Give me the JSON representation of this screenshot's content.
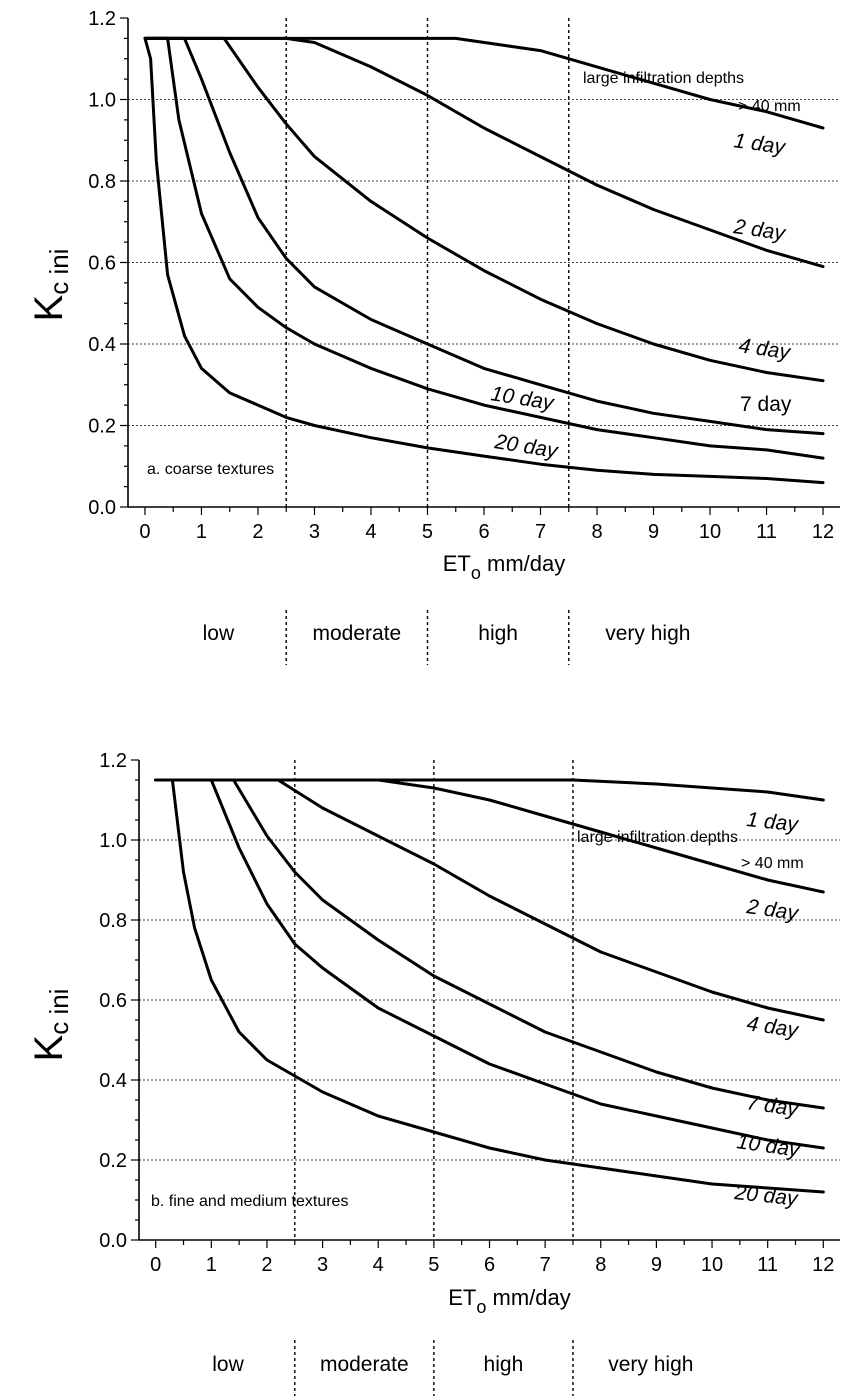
{
  "chart_data": [
    {
      "type": "line",
      "panel_label": "a.  coarse textures",
      "xlabel": "ET",
      "xlabel_sub": "o",
      "xlabel_unit": " mm/day",
      "ylabel": "K",
      "ylabel_sub": "c ini",
      "xlim": [
        -0.3,
        12.3
      ],
      "ylim": [
        0,
        1.2
      ],
      "x_ticks": [
        "0",
        "1",
        "2",
        "3",
        "4",
        "5",
        "6",
        "7",
        "8",
        "9",
        "10",
        "11",
        "12"
      ],
      "y_ticks": [
        "0.0",
        "0.2",
        "0.4",
        "0.6",
        "0.8",
        "1.0",
        "1.2"
      ],
      "grid": "horizontal dotted",
      "evaporative_demand": [
        "low",
        "moderate",
        "high",
        "very high"
      ],
      "class_boundaries": [
        2.5,
        5,
        7.5
      ],
      "infiltration_label": "large infiltration depths",
      "infiltration_sublabel": "> 40 mm",
      "series": [
        {
          "label": "1 day",
          "x": [
            0,
            3,
            5.5,
            7,
            8,
            9,
            10,
            11,
            12
          ],
          "y": [
            1.15,
            1.15,
            1.15,
            1.12,
            1.08,
            1.04,
            1.0,
            0.97,
            0.93
          ]
        },
        {
          "label": "2 day",
          "x": [
            0,
            2.5,
            3,
            4,
            5,
            6,
            7,
            8,
            9,
            10,
            11,
            12
          ],
          "y": [
            1.15,
            1.15,
            1.14,
            1.08,
            1.01,
            0.93,
            0.86,
            0.79,
            0.73,
            0.68,
            0.63,
            0.59
          ]
        },
        {
          "label": "4 day",
          "x": [
            0,
            1.4,
            2,
            2.5,
            3,
            4,
            5,
            6,
            7,
            8,
            9,
            10,
            11,
            12
          ],
          "y": [
            1.15,
            1.15,
            1.03,
            0.94,
            0.86,
            0.75,
            0.66,
            0.58,
            0.51,
            0.45,
            0.4,
            0.36,
            0.33,
            0.31
          ]
        },
        {
          "label": "7 day",
          "x": [
            0,
            0.7,
            1,
            1.5,
            2,
            2.5,
            3,
            4,
            5,
            6,
            7,
            8,
            9,
            10,
            11,
            12
          ],
          "y": [
            1.15,
            1.15,
            1.05,
            0.87,
            0.71,
            0.61,
            0.54,
            0.46,
            0.4,
            0.34,
            0.3,
            0.26,
            0.23,
            0.21,
            0.19,
            0.18
          ]
        },
        {
          "label": "10 day",
          "x": [
            0,
            0.4,
            0.6,
            1,
            1.5,
            2,
            2.5,
            3,
            4,
            5,
            6,
            7,
            8,
            9,
            10,
            11,
            12
          ],
          "y": [
            1.15,
            1.15,
            0.95,
            0.72,
            0.56,
            0.49,
            0.44,
            0.4,
            0.34,
            0.29,
            0.25,
            0.22,
            0.19,
            0.17,
            0.15,
            0.14,
            0.12
          ]
        },
        {
          "label": "20 day",
          "x": [
            0,
            0.1,
            0.2,
            0.4,
            0.7,
            1,
            1.5,
            2,
            2.5,
            3,
            4,
            5,
            6,
            7,
            8,
            9,
            10,
            11,
            12
          ],
          "y": [
            1.15,
            1.1,
            0.85,
            0.57,
            0.42,
            0.34,
            0.28,
            0.25,
            0.22,
            0.2,
            0.17,
            0.145,
            0.125,
            0.105,
            0.09,
            0.08,
            0.075,
            0.07,
            0.06
          ]
        }
      ]
    },
    {
      "type": "line",
      "panel_label": "b.  fine and medium textures",
      "xlabel": "ET",
      "xlabel_sub": "o",
      "xlabel_unit": " mm/day",
      "ylabel": "K",
      "ylabel_sub": "c ini",
      "xlim": [
        -0.3,
        12.3
      ],
      "ylim": [
        0,
        1.2
      ],
      "x_ticks": [
        "0",
        "1",
        "2",
        "3",
        "4",
        "5",
        "6",
        "7",
        "8",
        "9",
        "10",
        "11",
        "12"
      ],
      "y_ticks": [
        "0.0",
        "0.2",
        "0.4",
        "0.6",
        "0.8",
        "1.0",
        "1.2"
      ],
      "grid": "horizontal dotted",
      "evaporative_demand": [
        "low",
        "moderate",
        "high",
        "very high"
      ],
      "class_boundaries": [
        2.5,
        5,
        7.5
      ],
      "infiltration_label": "large infiltration depths",
      "infiltration_sublabel": "> 40 mm",
      "series": [
        {
          "label": "1 day",
          "x": [
            0,
            7.5,
            9,
            10,
            11,
            12
          ],
          "y": [
            1.15,
            1.15,
            1.14,
            1.13,
            1.12,
            1.1
          ]
        },
        {
          "label": "2 day",
          "x": [
            0,
            4,
            5,
            6,
            7,
            8,
            9,
            10,
            11,
            12
          ],
          "y": [
            1.15,
            1.15,
            1.13,
            1.1,
            1.06,
            1.02,
            0.98,
            0.94,
            0.9,
            0.87
          ]
        },
        {
          "label": "4 day",
          "x": [
            0,
            2.2,
            3,
            4,
            5,
            6,
            7,
            8,
            9,
            10,
            11,
            12
          ],
          "y": [
            1.15,
            1.15,
            1.08,
            1.01,
            0.94,
            0.86,
            0.79,
            0.72,
            0.67,
            0.62,
            0.58,
            0.55
          ]
        },
        {
          "label": "7 day",
          "x": [
            0,
            1.4,
            2,
            2.5,
            3,
            4,
            5,
            6,
            7,
            8,
            9,
            10,
            11,
            12
          ],
          "y": [
            1.15,
            1.15,
            1.01,
            0.92,
            0.85,
            0.75,
            0.66,
            0.59,
            0.52,
            0.47,
            0.42,
            0.38,
            0.35,
            0.33
          ]
        },
        {
          "label": "10 day",
          "x": [
            0,
            1,
            1.5,
            2,
            2.5,
            3,
            4,
            5,
            6,
            7,
            8,
            9,
            10,
            11,
            12
          ],
          "y": [
            1.15,
            1.15,
            0.98,
            0.84,
            0.74,
            0.68,
            0.58,
            0.51,
            0.44,
            0.39,
            0.34,
            0.31,
            0.28,
            0.25,
            0.23
          ]
        },
        {
          "label": "20 day",
          "x": [
            0,
            0.3,
            0.5,
            0.7,
            1,
            1.5,
            2,
            2.5,
            3,
            4,
            5,
            6,
            7,
            8,
            9,
            10,
            11,
            12
          ],
          "y": [
            1.15,
            1.15,
            0.92,
            0.78,
            0.65,
            0.52,
            0.45,
            0.41,
            0.37,
            0.31,
            0.27,
            0.23,
            0.2,
            0.18,
            0.16,
            0.14,
            0.13,
            0.12
          ]
        }
      ]
    }
  ]
}
